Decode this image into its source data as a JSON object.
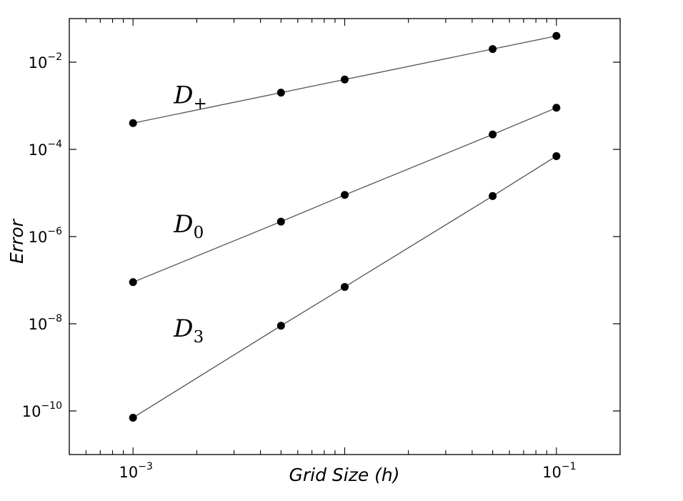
{
  "chart_data": {
    "type": "line",
    "xscale": "log",
    "yscale": "log",
    "xlabel": "Grid Size (h)",
    "ylabel": "Error",
    "xlim": [
      0.0005,
      0.2
    ],
    "ylim": [
      1e-11,
      0.1
    ],
    "x_ticks": [
      {
        "value": 0.001,
        "base": "10",
        "exp": "−3"
      },
      {
        "value": 0.1,
        "base": "10",
        "exp": "−1"
      }
    ],
    "y_ticks": [
      {
        "value": 0.01,
        "base": "10",
        "exp": "−2"
      },
      {
        "value": 0.0001,
        "base": "10",
        "exp": "−4"
      },
      {
        "value": 1e-06,
        "base": "10",
        "exp": "−6"
      },
      {
        "value": 1e-08,
        "base": "10",
        "exp": "−8"
      },
      {
        "value": 1e-10,
        "base": "10",
        "exp": "−10"
      }
    ],
    "grid": false,
    "legend": "none",
    "line_color": "#555555",
    "marker_color": "#000000",
    "x": [
      0.001,
      0.005,
      0.01,
      0.05,
      0.1
    ],
    "series": [
      {
        "name": "D+",
        "label_main": "D",
        "label_sub": "+",
        "values": [
          0.0004,
          0.002,
          0.004,
          0.02,
          0.04
        ]
      },
      {
        "name": "D0",
        "label_main": "D",
        "label_sub": "0",
        "values": [
          9e-08,
          2.2e-06,
          9e-06,
          0.00022,
          0.0009
        ]
      },
      {
        "name": "D3",
        "label_main": "D",
        "label_sub": "3",
        "values": [
          7e-11,
          9e-09,
          7e-08,
          8.5e-06,
          7e-05
        ]
      }
    ]
  }
}
